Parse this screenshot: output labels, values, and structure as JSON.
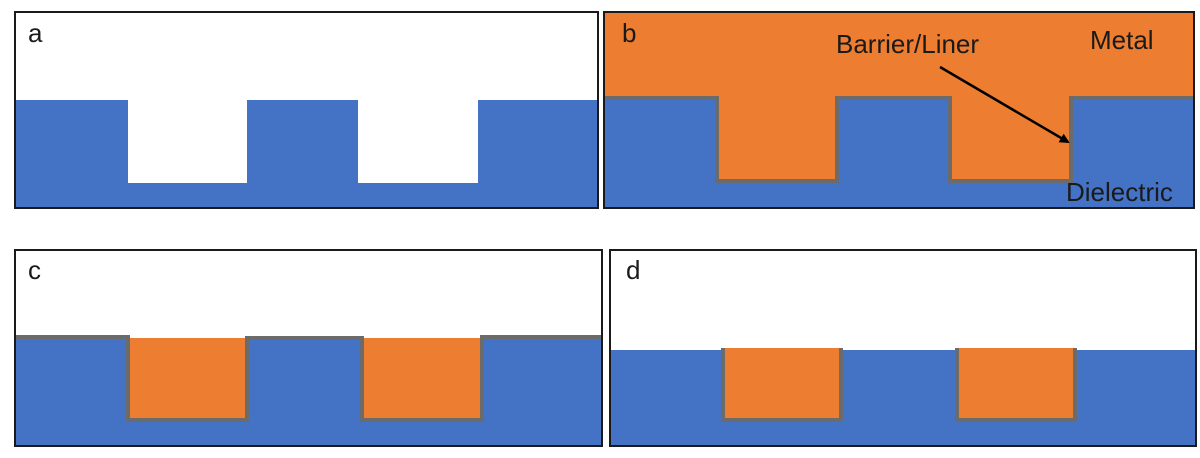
{
  "colors": {
    "dielectric": "#4472C4",
    "metal": "#ED7D31",
    "barrier": "#6B6B6B",
    "frame": "#1a1a1a",
    "background": "#ffffff"
  },
  "panels": [
    {
      "label": "a"
    },
    {
      "label": "b"
    },
    {
      "label": "c"
    },
    {
      "label": "d"
    }
  ],
  "annotations": {
    "barrier_liner": "Barrier/Liner",
    "metal": "Metal",
    "dielectric": "Dielectric"
  }
}
